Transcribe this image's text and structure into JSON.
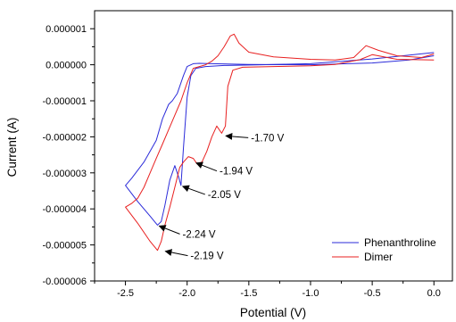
{
  "chart_data": {
    "type": "line",
    "xlabel": "Potential (V)",
    "ylabel": "Current (A)",
    "xlim": [
      -2.75,
      0.15
    ],
    "ylim": [
      -6e-06,
      1.5e-06
    ],
    "x_ticks": [
      -2.5,
      -2.0,
      -1.5,
      -1.0,
      -0.5,
      0.0
    ],
    "x_tick_labels": [
      "-2.5",
      "-2.0",
      "-1.5",
      "-1.0",
      "-0.5",
      "0.0"
    ],
    "y_ticks": [
      1e-06,
      0.0,
      -1e-06,
      -2e-06,
      -3e-06,
      -4e-06,
      -5e-06,
      -6e-06
    ],
    "y_tick_labels": [
      "0.000001",
      "0.000000",
      "-0.000001",
      "-0.000002",
      "-0.000003",
      "-0.000004",
      "-0.000005",
      "-0.000006"
    ],
    "grid": false,
    "legend_position": "bottom-right",
    "series": [
      {
        "name": "Phenanthroline",
        "color": "#2b2bd9",
        "x": [
          0.0,
          -0.5,
          -1.0,
          -1.4,
          -1.7,
          -1.85,
          -1.93,
          -1.97,
          -2.0,
          -2.03,
          -2.05,
          -2.07,
          -2.1,
          -2.14,
          -2.18,
          -2.21,
          -2.24,
          -2.3,
          -2.4,
          -2.5,
          -2.45,
          -2.35,
          -2.25,
          -2.2,
          -2.15,
          -2.12,
          -2.08,
          -2.03,
          -2.0,
          -1.95,
          -1.9,
          -1.8,
          -1.5,
          -1.0,
          -0.5,
          -0.2,
          0.0
        ],
        "y": [
          3.4e-07,
          1.6e-07,
          3e-08,
          0.0,
          -2e-08,
          -5e-08,
          -1e-07,
          -3e-07,
          -9e-07,
          -2.3e-06,
          -3.35e-06,
          -3.1e-06,
          -2.8e-06,
          -3.2e-06,
          -3.9e-06,
          -4.35e-06,
          -4.45e-06,
          -4.2e-06,
          -3.8e-06,
          -3.35e-06,
          -3.15e-06,
          -2.7e-06,
          -2.1e-06,
          -1.5e-06,
          -1.1e-06,
          -1e-06,
          -8e-07,
          -3e-07,
          -5e-08,
          3e-08,
          4e-08,
          3e-08,
          1e-08,
          0.0,
          5e-08,
          1.3e-07,
          2.5e-07
        ]
      },
      {
        "name": "Dimer",
        "color": "#e82020",
        "x": [
          0.0,
          -0.3,
          -0.5,
          -0.6,
          -0.8,
          -1.0,
          -1.3,
          -1.55,
          -1.63,
          -1.67,
          -1.69,
          -1.72,
          -1.76,
          -1.8,
          -1.84,
          -1.88,
          -1.92,
          -1.95,
          -1.99,
          -2.03,
          -2.06,
          -2.1,
          -2.14,
          -2.18,
          -2.21,
          -2.24,
          -2.3,
          -2.4,
          -2.5,
          -2.45,
          -2.4,
          -2.35,
          -2.3,
          -2.25,
          -2.2,
          -2.15,
          -2.1,
          -2.05,
          -2.0,
          -1.95,
          -1.85,
          -1.8,
          -1.75,
          -1.7,
          -1.65,
          -1.62,
          -1.58,
          -1.5,
          -1.3,
          -1.0,
          -0.8,
          -0.65,
          -0.55,
          -0.45,
          -0.3,
          -0.1,
          0.0
        ],
        "y": [
          1.3e-07,
          1.5e-07,
          2.8e-07,
          1.4e-07,
          1e-08,
          -3e-08,
          -5e-08,
          -7e-08,
          -1.5e-07,
          -6e-07,
          -1.7e-06,
          -1.9e-06,
          -1.7e-06,
          -2e-06,
          -2.4e-06,
          -2.7e-06,
          -2.75e-06,
          -2.6e-06,
          -2.55e-06,
          -2.7e-06,
          -2.85e-06,
          -3.4e-06,
          -3.95e-06,
          -4.45e-06,
          -4.9e-06,
          -5.15e-06,
          -4.9e-06,
          -4.4e-06,
          -3.95e-06,
          -3.85e-06,
          -3.7e-06,
          -3.4e-06,
          -3e-06,
          -2.6e-06,
          -2.2e-06,
          -1.8e-06,
          -1.4e-06,
          -1e-06,
          -5e-07,
          -1e-07,
          0.0,
          1e-07,
          2.5e-07,
          5e-07,
          8e-07,
          8.5e-07,
          6e-07,
          3.5e-07,
          2.2e-07,
          1.5e-07,
          1.3e-07,
          2e-07,
          5.3e-07,
          4e-07,
          2.5e-07,
          2e-07,
          3e-07
        ]
      }
    ],
    "annotations": [
      {
        "label": "-1.70 V",
        "x": -1.7,
        "y": -1.95e-06
      },
      {
        "label": "-1.94 V",
        "x": -1.94,
        "y": -2.7e-06
      },
      {
        "label": "-2.05 V",
        "x": -2.05,
        "y": -3.35e-06
      },
      {
        "label": "-2.24 V",
        "x": -2.24,
        "y": -4.45e-06
      },
      {
        "label": "-2.19 V",
        "x": -2.19,
        "y": -5.15e-06
      }
    ]
  }
}
